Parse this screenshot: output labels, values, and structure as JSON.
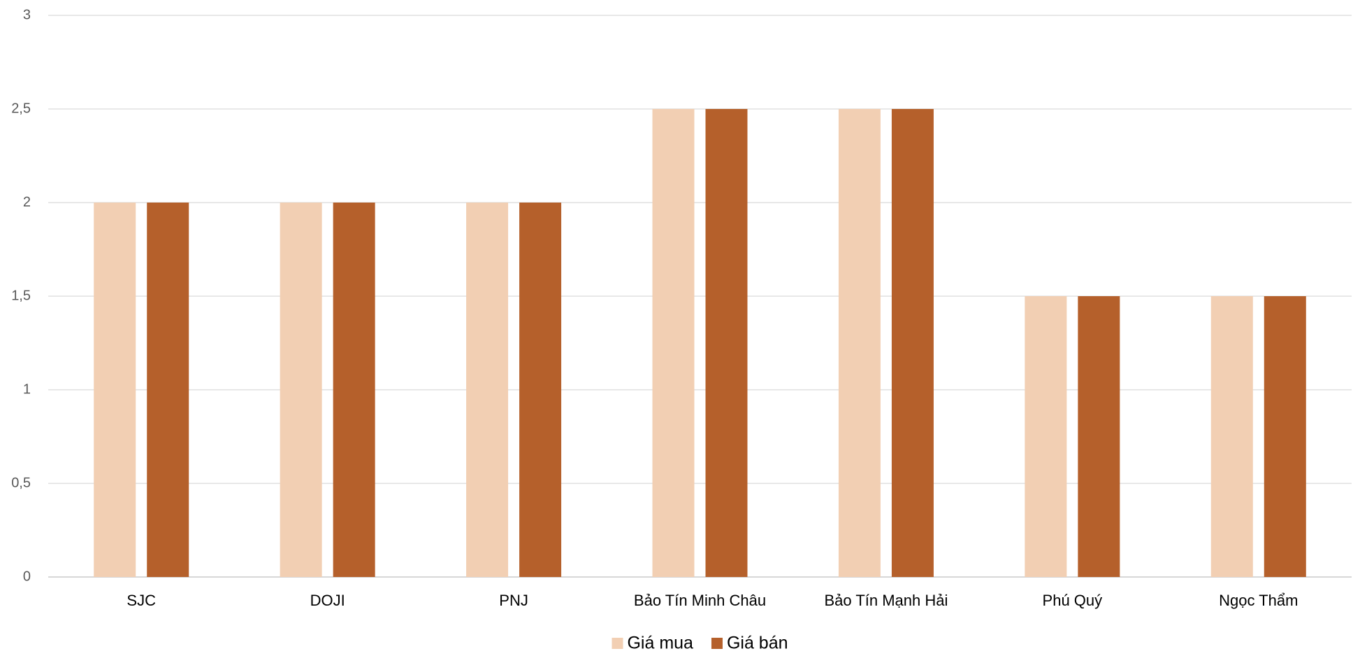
{
  "chart_data": {
    "type": "bar",
    "categories": [
      "SJC",
      "DOJI",
      "PNJ",
      "Bảo Tín Minh Châu",
      "Bảo Tín Mạnh Hải",
      "Phú Quý",
      "Ngọc Thẩm"
    ],
    "series": [
      {
        "name": "Giá mua",
        "color": "#f2cfb3",
        "values": [
          2,
          2,
          2,
          2.5,
          2.5,
          1.5,
          1.5
        ]
      },
      {
        "name": "Giá bán",
        "color": "#b5602b",
        "values": [
          2,
          2,
          2,
          2.5,
          2.5,
          1.5,
          1.5
        ]
      }
    ],
    "ylim": [
      0,
      3
    ],
    "yticks": [
      0,
      {
        "value": 0.5,
        "label": "0,5"
      },
      1,
      {
        "value": 1.5,
        "label": "1,5"
      },
      2,
      {
        "value": 2.5,
        "label": "2,5"
      },
      3
    ],
    "grid": true,
    "legend": "bottom"
  }
}
